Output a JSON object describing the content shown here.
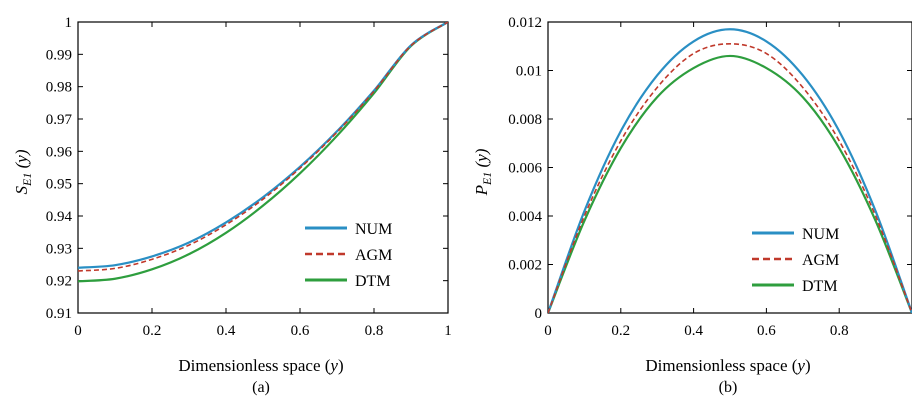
{
  "colors": {
    "NUM": "#2a8fc4",
    "AGM": "#c0392b",
    "DTM": "#2e9e3e"
  },
  "chart_data": [
    {
      "type": "line",
      "ylabel_main": "S",
      "ylabel_sub": "E1",
      "ylabel_arg": " (y)",
      "xlabel_main": "Dimensionless space (",
      "xlabel_var": "y",
      "xlabel_end": ")",
      "caption": "(a)",
      "xlim": [
        0,
        1
      ],
      "ylim": [
        0.91,
        1.0
      ],
      "xticks": [
        "0",
        "0.2",
        "0.4",
        "0.6",
        "0.8",
        "1"
      ],
      "yticks": [
        "0.91",
        "0.92",
        "0.93",
        "0.94",
        "0.95",
        "0.96",
        "0.97",
        "0.98",
        "0.99",
        "1"
      ],
      "legend_position": "bottom-right",
      "x": [
        0,
        0.1,
        0.2,
        0.3,
        0.4,
        0.5,
        0.6,
        0.7,
        0.8,
        0.9,
        1.0
      ],
      "series": [
        {
          "name": "NUM",
          "style": "solid",
          "values": [
            0.924,
            0.9248,
            0.9275,
            0.9318,
            0.938,
            0.9458,
            0.9552,
            0.9662,
            0.9788,
            0.9928,
            1.0
          ]
        },
        {
          "name": "AGM",
          "style": "dashed",
          "values": [
            0.923,
            0.9238,
            0.9266,
            0.931,
            0.9373,
            0.9452,
            0.9548,
            0.9659,
            0.9786,
            0.9927,
            1.0
          ]
        },
        {
          "name": "DTM",
          "style": "solid",
          "values": [
            0.9198,
            0.9206,
            0.9235,
            0.9282,
            0.9348,
            0.9432,
            0.9532,
            0.9648,
            0.978,
            0.9926,
            1.0
          ]
        }
      ]
    },
    {
      "type": "line",
      "ylabel_main": "P",
      "ylabel_sub": "E1",
      "ylabel_arg": " (y)",
      "xlabel_main": "Dimensionless space (",
      "xlabel_var": "y",
      "xlabel_end": ")",
      "caption": "(b)",
      "xlim": [
        0,
        1
      ],
      "ylim": [
        0,
        0.012
      ],
      "xticks": [
        "0",
        "0.2",
        "0.4",
        "0.6",
        "0.8"
      ],
      "yticks": [
        "0",
        "0.002",
        "0.004",
        "0.006",
        "0.008",
        "0.01",
        "0.012"
      ],
      "legend_position": "bottom-right",
      "x": [
        0,
        0.1,
        0.2,
        0.3,
        0.4,
        0.5,
        0.6,
        0.7,
        0.8,
        0.9,
        1.0
      ],
      "series": [
        {
          "name": "NUM",
          "style": "solid",
          "values": [
            0,
            0.0042,
            0.0075,
            0.0098,
            0.0112,
            0.0117,
            0.0112,
            0.0098,
            0.0075,
            0.0042,
            0
          ]
        },
        {
          "name": "AGM",
          "style": "dashed",
          "values": [
            0,
            0.004,
            0.0071,
            0.0093,
            0.0107,
            0.0111,
            0.0107,
            0.0093,
            0.0071,
            0.004,
            0
          ]
        },
        {
          "name": "DTM",
          "style": "solid",
          "values": [
            0,
            0.0038,
            0.0068,
            0.0089,
            0.0101,
            0.0106,
            0.0101,
            0.0089,
            0.0068,
            0.0038,
            0
          ]
        }
      ]
    }
  ]
}
